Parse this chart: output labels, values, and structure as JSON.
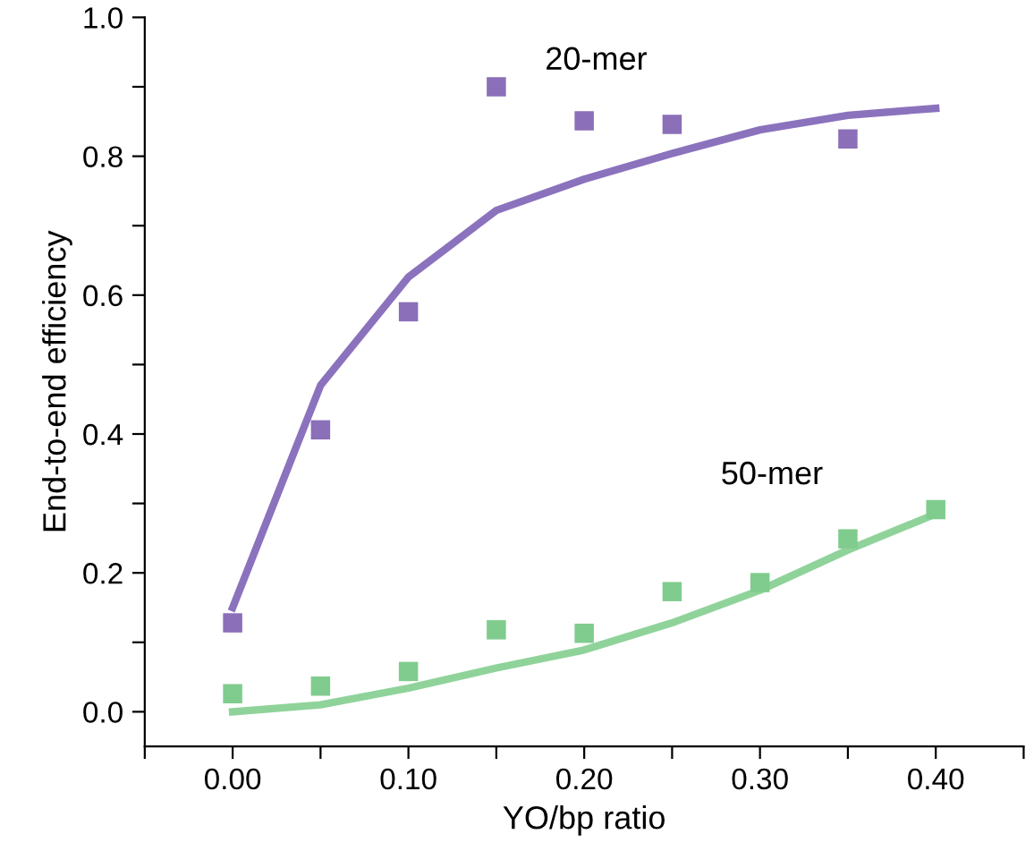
{
  "chart_data": {
    "type": "scatter",
    "xlabel": "YO/bp ratio",
    "ylabel": "End-to-end efficiency",
    "x": [
      0.0,
      0.05,
      0.1,
      0.15,
      0.2,
      0.25,
      0.3,
      0.35,
      0.4
    ],
    "series": [
      {
        "name": "20-mer",
        "marker": "square",
        "color": "#8b6fb8",
        "x": [
          0.0,
          0.05,
          0.1,
          0.15,
          0.2,
          0.25,
          0.35
        ],
        "values": [
          0.128,
          0.406,
          0.576,
          0.9,
          0.851,
          0.846,
          0.825
        ]
      },
      {
        "type": "line",
        "marker": "none",
        "color": "#8b72bd",
        "values": [
          0.15,
          0.47,
          0.626,
          0.722,
          0.767,
          0.804,
          0.838,
          0.859,
          0.869
        ]
      },
      {
        "name": "50-mer",
        "marker": "square",
        "color": "#80cc8e",
        "values": [
          0.026,
          0.037,
          0.058,
          0.118,
          0.113,
          0.173,
          0.186,
          0.249,
          0.291
        ]
      },
      {
        "type": "line",
        "marker": "none",
        "color": "#8fd39a",
        "values": [
          0.0,
          0.01,
          0.034,
          0.063,
          0.089,
          0.128,
          0.175,
          0.233,
          0.285
        ]
      }
    ],
    "xlim": [
      -0.05,
      0.45
    ],
    "ylim": [
      -0.05,
      1.0
    ],
    "xticks": [
      {
        "value": -0.05,
        "label": null
      },
      {
        "value": 0.0,
        "label": "0.00"
      },
      {
        "value": 0.05,
        "label": null
      },
      {
        "value": 0.1,
        "label": "0.10"
      },
      {
        "value": 0.15,
        "label": null
      },
      {
        "value": 0.2,
        "label": "0.20"
      },
      {
        "value": 0.25,
        "label": null
      },
      {
        "value": 0.3,
        "label": "0.30"
      },
      {
        "value": 0.35,
        "label": null
      },
      {
        "value": 0.4,
        "label": "0.40"
      },
      {
        "value": 0.45,
        "label": null
      }
    ],
    "yticks": [
      {
        "value": 0.0,
        "label": "0.0"
      },
      {
        "value": 0.1,
        "label": null
      },
      {
        "value": 0.2,
        "label": "0.2"
      },
      {
        "value": 0.3,
        "label": null
      },
      {
        "value": 0.4,
        "label": "0.4"
      },
      {
        "value": 0.5,
        "label": null
      },
      {
        "value": 0.6,
        "label": "0.6"
      },
      {
        "value": 0.7,
        "label": null
      },
      {
        "value": 0.8,
        "label": "0.8"
      },
      {
        "value": 0.9,
        "label": null
      },
      {
        "value": 1.0,
        "label": "1.0"
      }
    ],
    "grid": false
  }
}
